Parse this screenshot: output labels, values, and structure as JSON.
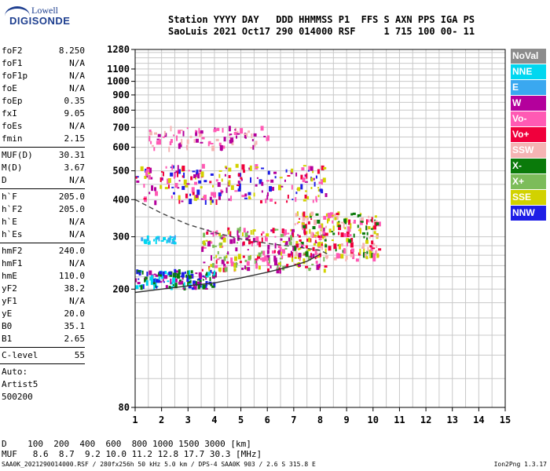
{
  "logo": {
    "line1": "Lowell",
    "line2": "DIGISONDE"
  },
  "header": {
    "row1": "Station YYYY DAY   DDD HHMMSS P1  FFS S AXN PPS IGA PS",
    "row2": "SaoLuis 2021 Oct17 290 014000 RSF     1 715 100 00- 11"
  },
  "params": {
    "group1": [
      {
        "k": "foF2",
        "v": "8.250"
      },
      {
        "k": "foF1",
        "v": "N/A"
      },
      {
        "k": "foF1p",
        "v": "N/A"
      },
      {
        "k": "foE",
        "v": "N/A"
      },
      {
        "k": "foEp",
        "v": "0.35"
      },
      {
        "k": "fxI",
        "v": "9.05"
      },
      {
        "k": "foEs",
        "v": "N/A"
      },
      {
        "k": "fmin",
        "v": "2.15"
      }
    ],
    "group2": [
      {
        "k": "MUF(D)",
        "v": "30.31"
      },
      {
        "k": "M(D)",
        "v": "3.67"
      },
      {
        "k": "D",
        "v": "N/A"
      }
    ],
    "group3": [
      {
        "k": "h`F",
        "v": "205.0"
      },
      {
        "k": "h`F2",
        "v": "205.0"
      },
      {
        "k": "h`E",
        "v": "N/A"
      },
      {
        "k": "h`Es",
        "v": "N/A"
      }
    ],
    "group4": [
      {
        "k": "hmF2",
        "v": "240.0"
      },
      {
        "k": "hmF1",
        "v": "N/A"
      },
      {
        "k": "hmE",
        "v": "110.0"
      },
      {
        "k": "yF2",
        "v": "38.2"
      },
      {
        "k": "yF1",
        "v": "N/A"
      },
      {
        "k": "yE",
        "v": "20.0"
      },
      {
        "k": "B0",
        "v": "35.1"
      },
      {
        "k": "B1",
        "v": "2.65"
      }
    ],
    "group5": [
      {
        "k": "C-level",
        "v": "55"
      }
    ],
    "footer_lines": [
      "Auto:",
      "Artist5",
      "500200"
    ]
  },
  "legend": [
    {
      "label": "NoVal",
      "color": "#8c8c8c"
    },
    {
      "label": "NNE",
      "color": "#00d7f0"
    },
    {
      "label": "E",
      "color": "#3aa8f0"
    },
    {
      "label": "W",
      "color": "#b4009c"
    },
    {
      "label": "Vo-",
      "color": "#ff5ab4"
    },
    {
      "label": "Vo+",
      "color": "#f0003c"
    },
    {
      "label": "SSW",
      "color": "#f5b4b4"
    },
    {
      "label": "X-",
      "color": "#0a7a0a"
    },
    {
      "label": "X+",
      "color": "#7cbc5a"
    },
    {
      "label": "SSE",
      "color": "#d2d200"
    },
    {
      "label": "NNW",
      "color": "#1e1ee6"
    }
  ],
  "footer": {
    "row1": "D    100  200  400  600  800 1000 1500 3000 [km]",
    "row2": "MUF   8.6  8.7  9.2 10.0 11.2 12.8 17.7 30.3 [MHz]",
    "file": "SAA0K_2021290014000.RSF / 280fx256h 50 kHz 5.0 km / DPS-4 SAA0K 903 / 2.6 S 315.8 E",
    "version": "Ion2Png 1.3.17"
  },
  "chart_data": {
    "type": "scatter",
    "xlim": [
      1,
      15
    ],
    "ylim": [
      80,
      1280
    ],
    "x_ticks": [
      1,
      2,
      3,
      4,
      5,
      6,
      7,
      8,
      9,
      10,
      11,
      12,
      13,
      14,
      15
    ],
    "y_ticks": [
      80,
      200,
      300,
      400,
      500,
      600,
      700,
      800,
      900,
      1000,
      1100,
      1280
    ],
    "y_scale": "log",
    "grid": true,
    "traces": [
      {
        "name": "virtual-height-trace",
        "points": [
          [
            1.0,
            195
          ],
          [
            2,
            200
          ],
          [
            3,
            205
          ],
          [
            4,
            210
          ],
          [
            5,
            218
          ],
          [
            6,
            228
          ],
          [
            7,
            240
          ],
          [
            7.5,
            248
          ],
          [
            8.0,
            262
          ]
        ]
      },
      {
        "name": "ordinary-trace-upper",
        "points": [
          [
            1.0,
            400
          ],
          [
            2,
            360
          ],
          [
            3,
            330
          ],
          [
            4,
            310
          ],
          [
            5,
            295
          ],
          [
            6,
            285
          ],
          [
            7,
            278
          ],
          [
            8,
            270
          ],
          [
            8.3,
            262
          ]
        ]
      }
    ],
    "echo_clusters": [
      {
        "x": [
          1.0,
          4.0
        ],
        "y": [
          200,
          230
        ],
        "colors": [
          "#1e1ee6",
          "#b4009c",
          "#0a7a0a",
          "#00d7f0"
        ],
        "n": 160
      },
      {
        "x": [
          3.5,
          8.2
        ],
        "y": [
          230,
          320
        ],
        "colors": [
          "#f0003c",
          "#ff5ab4",
          "#b4009c",
          "#d2d200",
          "#7cbc5a"
        ],
        "n": 260
      },
      {
        "x": [
          7.0,
          10.2
        ],
        "y": [
          250,
          360
        ],
        "colors": [
          "#d2d200",
          "#f0003c",
          "#0a7a0a",
          "#ff5ab4",
          "#f5b4b4"
        ],
        "n": 200
      },
      {
        "x": [
          1.0,
          8.2
        ],
        "y": [
          390,
          520
        ],
        "colors": [
          "#b4009c",
          "#f0003c",
          "#ff5ab4",
          "#1e1ee6",
          "#d2d200"
        ],
        "n": 220
      },
      {
        "x": [
          1.5,
          6.0
        ],
        "y": [
          590,
          700
        ],
        "colors": [
          "#b4009c",
          "#ff5ab4",
          "#f5b4b4"
        ],
        "n": 90
      },
      {
        "x": [
          1.0,
          2.5
        ],
        "y": [
          285,
          300
        ],
        "colors": [
          "#00d7f0",
          "#3aa8f0"
        ],
        "n": 30
      }
    ]
  }
}
